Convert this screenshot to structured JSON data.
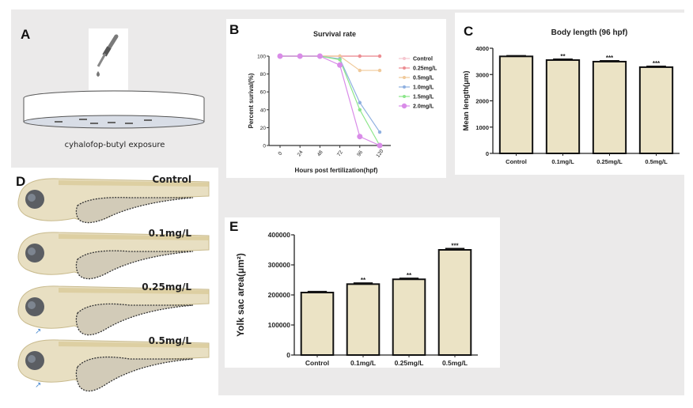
{
  "panels": {
    "A": {
      "label": "A",
      "caption": "cyhalofop-butyl exposure"
    },
    "B": {
      "label": "B"
    },
    "C": {
      "label": "C"
    },
    "D": {
      "label": "D",
      "fish_labels": [
        "Control",
        "0.1mg/L",
        "0.25mg/L",
        "0.5mg/L"
      ]
    },
    "E": {
      "label": "E"
    }
  },
  "colors": {
    "bar_fill": "#ebe3c5",
    "bar_stroke": "#111111",
    "Control": "#f5c6cf",
    "0.25mg/L": "#ec8d92",
    "0.5mg/L": "#f0c99a",
    "1.0mg/L": "#8fb0e0",
    "1.5mg/L": "#8ce68a",
    "2.0mg/L": "#d98ce8"
  },
  "chart_data": [
    {
      "id": "survival",
      "type": "line",
      "title": "Survival rate",
      "xlabel": "Hours post fertilization(hpf)",
      "ylabel": "Percent surival(%)",
      "x": [
        0,
        24,
        48,
        72,
        96,
        120
      ],
      "xticks": [
        "0",
        "24",
        "48",
        "72",
        "96",
        "120"
      ],
      "ylim": [
        0,
        100
      ],
      "yticks": [
        "0",
        "20",
        "40",
        "60",
        "80",
        "100"
      ],
      "legend": "right",
      "series": [
        {
          "name": "Control",
          "values": [
            100,
            100,
            100,
            100,
            100,
            100
          ]
        },
        {
          "name": "0.25mg/L",
          "values": [
            100,
            100,
            100,
            100,
            100,
            100
          ]
        },
        {
          "name": "0.5mg/L",
          "values": [
            100,
            100,
            100,
            100,
            84,
            84
          ]
        },
        {
          "name": "1.0mg/L",
          "values": [
            100,
            100,
            100,
            97,
            48,
            15
          ]
        },
        {
          "name": "1.5mg/L",
          "values": [
            100,
            100,
            100,
            96,
            40,
            0
          ]
        },
        {
          "name": "2.0mg/L",
          "values": [
            100,
            100,
            100,
            90,
            10,
            0
          ]
        }
      ]
    },
    {
      "id": "body-length",
      "type": "bar",
      "title": "Body length (96 hpf)",
      "xlabel": "",
      "ylabel": "Mean length(μm)",
      "categories": [
        "Control",
        "0.1mg/L",
        "0.25mg/L",
        "0.5mg/L"
      ],
      "values": [
        3690,
        3550,
        3490,
        3280
      ],
      "errors": [
        20,
        30,
        30,
        30
      ],
      "significance": [
        "",
        "**",
        "***",
        "***"
      ],
      "ylim": [
        0,
        4000
      ],
      "yticks": [
        "0",
        "1000",
        "2000",
        "3000",
        "4000"
      ]
    },
    {
      "id": "yolk-sac",
      "type": "bar",
      "title": "",
      "xlabel": "",
      "ylabel": "Yolk sac area(μm²)",
      "categories": [
        "Control",
        "0.1mg/L",
        "0.25mg/L",
        "0.5mg/L"
      ],
      "values": [
        208000,
        236000,
        252000,
        350000
      ],
      "errors": [
        3000,
        3000,
        3000,
        4000
      ],
      "significance": [
        "",
        "**",
        "**",
        "***"
      ],
      "ylim": [
        0,
        400000
      ],
      "yticks": [
        "0",
        "100000",
        "200000",
        "300000",
        "400000"
      ]
    }
  ]
}
